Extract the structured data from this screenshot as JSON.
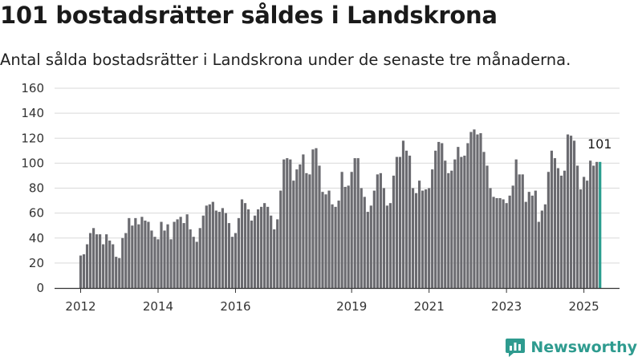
{
  "header": {
    "title": "101 bostadsrätter såldes i Landskrona",
    "subtitle": "Antal sålda bostadsrätter i Landskrona under de senaste tre månaderna."
  },
  "brand": {
    "name": "Newsworthy",
    "icon": "newsworthy-logo-icon",
    "color": "#2e9b8f"
  },
  "colors": {
    "bar": "#6b6b70",
    "highlight": "#2a9d8f",
    "axis": "#333333",
    "grid": "#d9d9d9"
  },
  "chart_data": {
    "type": "bar",
    "title": "101 bostadsrätter såldes i Landskrona",
    "subtitle": "Antal sålda bostadsrätter i Landskrona under de senaste tre månaderna.",
    "xlabel": "",
    "ylabel": "",
    "ylim": [
      0,
      160
    ],
    "yticks": [
      0,
      20,
      40,
      60,
      80,
      100,
      120,
      140,
      160
    ],
    "xticks": [
      {
        "label": "2012",
        "index": 0
      },
      {
        "label": "2014",
        "index": 24
      },
      {
        "label": "2016",
        "index": 48
      },
      {
        "label": "2019",
        "index": 84
      },
      {
        "label": "2021",
        "index": 108
      },
      {
        "label": "2023",
        "index": 132
      },
      {
        "label": "2025",
        "index": 156
      }
    ],
    "grid": true,
    "start": "2012-01",
    "frequency": "monthly",
    "values": [
      26,
      27,
      35,
      44,
      48,
      43,
      43,
      35,
      43,
      38,
      35,
      25,
      24,
      40,
      44,
      56,
      50,
      56,
      51,
      57,
      54,
      53,
      46,
      41,
      39,
      53,
      46,
      51,
      39,
      53,
      55,
      57,
      52,
      59,
      47,
      41,
      37,
      48,
      58,
      66,
      67,
      69,
      62,
      61,
      64,
      60,
      52,
      41,
      44,
      56,
      71,
      68,
      63,
      54,
      58,
      63,
      65,
      68,
      65,
      58,
      47,
      55,
      78,
      103,
      104,
      103,
      86,
      95,
      99,
      107,
      92,
      91,
      111,
      112,
      98,
      77,
      75,
      78,
      67,
      65,
      70,
      93,
      81,
      82,
      93,
      104,
      104,
      80,
      73,
      61,
      66,
      78,
      91,
      92,
      80,
      66,
      68,
      90,
      105,
      105,
      118,
      110,
      106,
      80,
      76,
      86,
      78,
      79,
      80,
      95,
      110,
      117,
      116,
      102,
      92,
      94,
      103,
      113,
      105,
      106,
      116,
      125,
      127,
      123,
      124,
      109,
      98,
      80,
      73,
      72,
      72,
      71,
      68,
      74,
      82,
      103,
      91,
      91,
      69,
      77,
      74,
      78,
      53,
      62,
      67,
      93,
      110,
      104,
      96,
      90,
      94,
      123,
      122,
      118,
      98,
      79,
      89,
      86,
      102,
      98,
      101,
      101
    ],
    "highlight_last": true,
    "annotation": "101"
  }
}
